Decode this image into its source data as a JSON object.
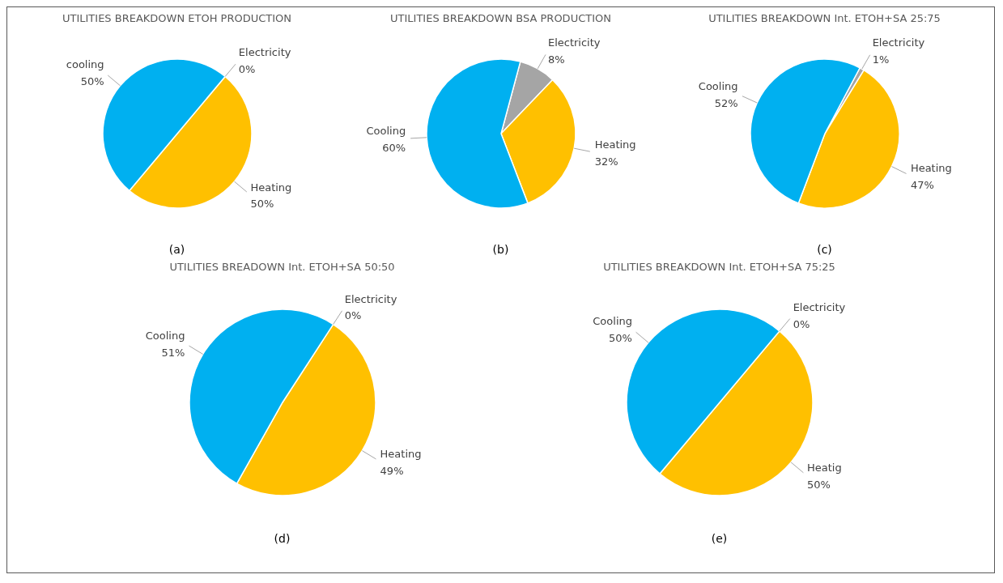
{
  "chart_data": [
    {
      "type": "pie",
      "title": "UTILITIES BREAKDOWN ETOH PRODUCTION",
      "categories": [
        "Electricity",
        "Heating",
        "cooling"
      ],
      "values": [
        0,
        50,
        50
      ],
      "value_labels": [
        "0%",
        "50%",
        "50%"
      ],
      "colors": [
        "#a5a5a5",
        "#ffc000",
        "#00b0f0"
      ],
      "annotations": [
        "(a)"
      ]
    },
    {
      "type": "pie",
      "title": "UTILITIES BREAKDOWN BSA PRODUCTION",
      "categories": [
        "Electricity",
        "Heating",
        "Cooling"
      ],
      "values": [
        8,
        32,
        60
      ],
      "value_labels": [
        "8%",
        "32%",
        "60%"
      ],
      "colors": [
        "#a5a5a5",
        "#ffc000",
        "#00b0f0"
      ],
      "annotations": [
        "(b)"
      ]
    },
    {
      "type": "pie",
      "title": "UTILITIES BREAKDOWN Int. ETOH+SA 25:75",
      "categories": [
        "Electricity",
        "Heating",
        "Cooling"
      ],
      "values": [
        1,
        47,
        52
      ],
      "value_labels": [
        "1%",
        "47%",
        "52%"
      ],
      "colors": [
        "#a5a5a5",
        "#ffc000",
        "#00b0f0"
      ],
      "annotations": [
        "(c)"
      ]
    },
    {
      "type": "pie",
      "title": "UTILITIES BREADOWN Int. ETOH+SA 50:50",
      "categories": [
        "Electricity",
        "Heating",
        "Cooling"
      ],
      "values": [
        0,
        49,
        51
      ],
      "value_labels": [
        "0%",
        "49%",
        "51%"
      ],
      "colors": [
        "#a5a5a5",
        "#ffc000",
        "#00b0f0"
      ],
      "annotations": [
        "(d)"
      ]
    },
    {
      "type": "pie",
      "title": "UTILITIES BREAKDOWN Int. ETOH+SA 75:25",
      "categories": [
        "Electricity",
        "Heatig",
        "Cooling"
      ],
      "values": [
        0,
        50,
        50
      ],
      "value_labels": [
        "0%",
        "50%",
        "50%"
      ],
      "colors": [
        "#a5a5a5",
        "#ffc000",
        "#00b0f0"
      ],
      "annotations": [
        "(e)"
      ]
    }
  ]
}
